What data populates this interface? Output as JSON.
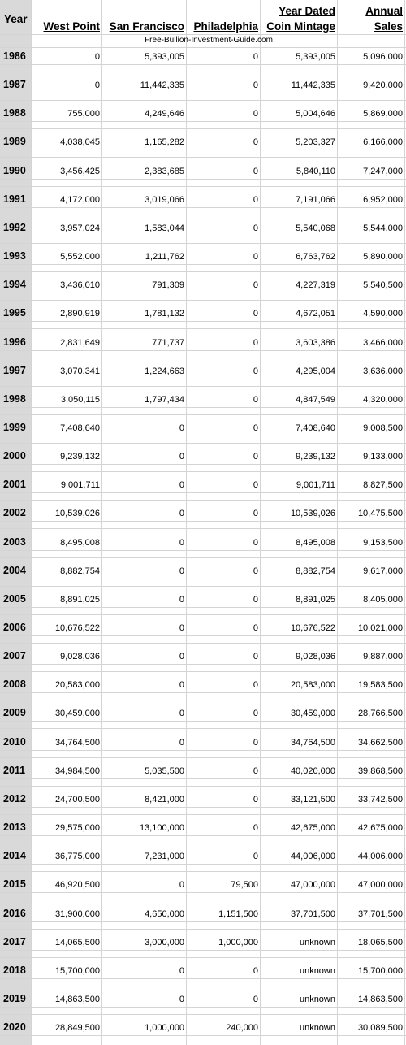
{
  "headers": {
    "year": "Year",
    "west_point": "West Point",
    "san_francisco": "San Francisco",
    "philadelphia": "Philadelphia",
    "year_dated_line1": "Year Dated",
    "year_dated_line2": "Coin Mintage",
    "annual_line1": "Annual",
    "annual_line2": "Sales"
  },
  "credit": "Free-Bullion-Investment-Guide.com",
  "rows": [
    {
      "year": "1986",
      "west_point": "0",
      "san_francisco": "5,393,005",
      "philadelphia": "0",
      "mintage": "5,393,005",
      "sales": "5,096,000"
    },
    {
      "year": "1987",
      "west_point": "0",
      "san_francisco": "11,442,335",
      "philadelphia": "0",
      "mintage": "11,442,335",
      "sales": "9,420,000"
    },
    {
      "year": "1988",
      "west_point": "755,000",
      "san_francisco": "4,249,646",
      "philadelphia": "0",
      "mintage": "5,004,646",
      "sales": "5,869,000"
    },
    {
      "year": "1989",
      "west_point": "4,038,045",
      "san_francisco": "1,165,282",
      "philadelphia": "0",
      "mintage": "5,203,327",
      "sales": "6,166,000"
    },
    {
      "year": "1990",
      "west_point": "3,456,425",
      "san_francisco": "2,383,685",
      "philadelphia": "0",
      "mintage": "5,840,110",
      "sales": "7,247,000"
    },
    {
      "year": "1991",
      "west_point": "4,172,000",
      "san_francisco": "3,019,066",
      "philadelphia": "0",
      "mintage": "7,191,066",
      "sales": "6,952,000"
    },
    {
      "year": "1992",
      "west_point": "3,957,024",
      "san_francisco": "1,583,044",
      "philadelphia": "0",
      "mintage": "5,540,068",
      "sales": "5,544,000"
    },
    {
      "year": "1993",
      "west_point": "5,552,000",
      "san_francisco": "1,211,762",
      "philadelphia": "0",
      "mintage": "6,763,762",
      "sales": "5,890,000"
    },
    {
      "year": "1994",
      "west_point": "3,436,010",
      "san_francisco": "791,309",
      "philadelphia": "0",
      "mintage": "4,227,319",
      "sales": "5,540,500"
    },
    {
      "year": "1995",
      "west_point": "2,890,919",
      "san_francisco": "1,781,132",
      "philadelphia": "0",
      "mintage": "4,672,051",
      "sales": "4,590,000"
    },
    {
      "year": "1996",
      "west_point": "2,831,649",
      "san_francisco": "771,737",
      "philadelphia": "0",
      "mintage": "3,603,386",
      "sales": "3,466,000"
    },
    {
      "year": "1997",
      "west_point": "3,070,341",
      "san_francisco": "1,224,663",
      "philadelphia": "0",
      "mintage": "4,295,004",
      "sales": "3,636,000"
    },
    {
      "year": "1998",
      "west_point": "3,050,115",
      "san_francisco": "1,797,434",
      "philadelphia": "0",
      "mintage": "4,847,549",
      "sales": "4,320,000"
    },
    {
      "year": "1999",
      "west_point": "7,408,640",
      "san_francisco": "0",
      "philadelphia": "0",
      "mintage": "7,408,640",
      "sales": "9,008,500"
    },
    {
      "year": "2000",
      "west_point": "9,239,132",
      "san_francisco": "0",
      "philadelphia": "0",
      "mintage": "9,239,132",
      "sales": "9,133,000"
    },
    {
      "year": "2001",
      "west_point": "9,001,711",
      "san_francisco": "0",
      "philadelphia": "0",
      "mintage": "9,001,711",
      "sales": "8,827,500"
    },
    {
      "year": "2002",
      "west_point": "10,539,026",
      "san_francisco": "0",
      "philadelphia": "0",
      "mintage": "10,539,026",
      "sales": "10,475,500"
    },
    {
      "year": "2003",
      "west_point": "8,495,008",
      "san_francisco": "0",
      "philadelphia": "0",
      "mintage": "8,495,008",
      "sales": "9,153,500"
    },
    {
      "year": "2004",
      "west_point": "8,882,754",
      "san_francisco": "0",
      "philadelphia": "0",
      "mintage": "8,882,754",
      "sales": "9,617,000"
    },
    {
      "year": "2005",
      "west_point": "8,891,025",
      "san_francisco": "0",
      "philadelphia": "0",
      "mintage": "8,891,025",
      "sales": "8,405,000"
    },
    {
      "year": "2006",
      "west_point": "10,676,522",
      "san_francisco": "0",
      "philadelphia": "0",
      "mintage": "10,676,522",
      "sales": "10,021,000"
    },
    {
      "year": "2007",
      "west_point": "9,028,036",
      "san_francisco": "0",
      "philadelphia": "0",
      "mintage": "9,028,036",
      "sales": "9,887,000"
    },
    {
      "year": "2008",
      "west_point": "20,583,000",
      "san_francisco": "0",
      "philadelphia": "0",
      "mintage": "20,583,000",
      "sales": "19,583,500"
    },
    {
      "year": "2009",
      "west_point": "30,459,000",
      "san_francisco": "0",
      "philadelphia": "0",
      "mintage": "30,459,000",
      "sales": "28,766,500"
    },
    {
      "year": "2010",
      "west_point": "34,764,500",
      "san_francisco": "0",
      "philadelphia": "0",
      "mintage": "34,764,500",
      "sales": "34,662,500"
    },
    {
      "year": "2011",
      "west_point": "34,984,500",
      "san_francisco": "5,035,500",
      "philadelphia": "0",
      "mintage": "40,020,000",
      "sales": "39,868,500"
    },
    {
      "year": "2012",
      "west_point": "24,700,500",
      "san_francisco": "8,421,000",
      "philadelphia": "0",
      "mintage": "33,121,500",
      "sales": "33,742,500"
    },
    {
      "year": "2013",
      "west_point": "29,575,000",
      "san_francisco": "13,100,000",
      "philadelphia": "0",
      "mintage": "42,675,000",
      "sales": "42,675,000"
    },
    {
      "year": "2014",
      "west_point": "36,775,000",
      "san_francisco": "7,231,000",
      "philadelphia": "0",
      "mintage": "44,006,000",
      "sales": "44,006,000"
    },
    {
      "year": "2015",
      "west_point": "46,920,500",
      "san_francisco": "0",
      "philadelphia": "79,500",
      "mintage": "47,000,000",
      "sales": "47,000,000"
    },
    {
      "year": "2016",
      "west_point": "31,900,000",
      "san_francisco": "4,650,000",
      "philadelphia": "1,151,500",
      "mintage": "37,701,500",
      "sales": "37,701,500"
    },
    {
      "year": "2017",
      "west_point": "14,065,500",
      "san_francisco": "3,000,000",
      "philadelphia": "1,000,000",
      "mintage": "unknown",
      "sales": "18,065,500"
    },
    {
      "year": "2018",
      "west_point": "15,700,000",
      "san_francisco": "0",
      "philadelphia": "0",
      "mintage": "unknown",
      "sales": "15,700,000"
    },
    {
      "year": "2019",
      "west_point": "14,863,500",
      "san_francisco": "0",
      "philadelphia": "0",
      "mintage": "unknown",
      "sales": "14,863,500"
    },
    {
      "year": "2020",
      "west_point": "28,849,500",
      "san_francisco": "1,000,000",
      "philadelphia": "240,000",
      "mintage": "unknown",
      "sales": "30,089,500"
    }
  ]
}
